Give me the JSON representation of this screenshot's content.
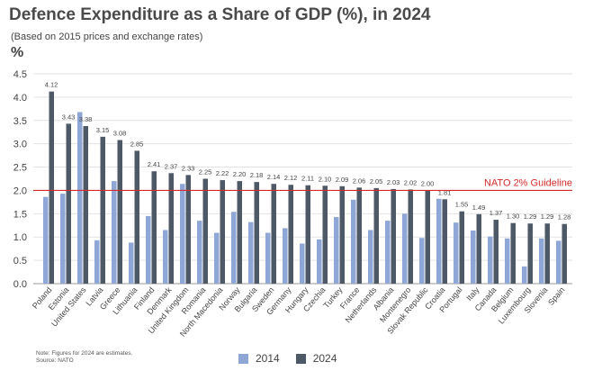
{
  "chart_data": {
    "type": "bar",
    "title": "Defence Expenditure as a Share of GDP (%), in 2024",
    "subtitle": "(Based on 2015 prices and exchange rates)",
    "ylabel": "%",
    "xlabel": "",
    "ylim": [
      0,
      4.5
    ],
    "yticks": [
      "0.0",
      "0.5",
      "1.0",
      "1.5",
      "2.0",
      "2.5",
      "3.0",
      "3.5",
      "4.0",
      "4.5"
    ],
    "categories": [
      "Poland",
      "Estonia",
      "United States",
      "Latvia",
      "Greece",
      "Lithuania",
      "Finland",
      "Denmark",
      "United Kingdom",
      "Romania",
      "North Macedonia",
      "Norway",
      "Bulgaria",
      "Sweden",
      "Germany",
      "Hungary",
      "Czechia",
      "Turkey",
      "France",
      "Netherlands",
      "Albania",
      "Montenegro",
      "Slovak Republic",
      "Croatia",
      "Portugal",
      "Italy",
      "Canada",
      "Belgium",
      "Luxembourg",
      "Slovenia",
      "Spain"
    ],
    "series": [
      {
        "name": "2014",
        "color": "#8fa7d6",
        "values": [
          1.86,
          1.93,
          3.68,
          0.93,
          2.2,
          0.88,
          1.45,
          1.15,
          2.14,
          1.35,
          1.09,
          1.54,
          1.32,
          1.09,
          1.19,
          0.86,
          0.95,
          1.43,
          1.8,
          1.15,
          1.35,
          1.5,
          0.98,
          1.82,
          1.31,
          1.14,
          1.01,
          0.97,
          0.37,
          0.97,
          0.92
        ],
        "labels": []
      },
      {
        "name": "2024",
        "color": "#4d5966",
        "values": [
          4.12,
          3.43,
          3.38,
          3.15,
          3.08,
          2.85,
          2.41,
          2.37,
          2.33,
          2.25,
          2.22,
          2.2,
          2.18,
          2.14,
          2.12,
          2.11,
          2.1,
          2.09,
          2.06,
          2.05,
          2.03,
          2.02,
          2.0,
          1.81,
          1.55,
          1.49,
          1.37,
          1.3,
          1.29,
          1.29,
          1.28
        ],
        "labels": [
          "4.12",
          "3.43",
          "3.38",
          "3.15",
          "3.08",
          "2.85",
          "2.41",
          "2.37",
          "2.33",
          "2.25",
          "2.22",
          "2.20",
          "2.18",
          "2.14",
          "2.12",
          "2.11",
          "2.10",
          "2.09",
          "2.06",
          "2.05",
          "2.03",
          "2.02",
          "2.00",
          "1.81",
          "1.55",
          "1.49",
          "1.37",
          "1.30",
          "1.29",
          "1.29",
          "1.28"
        ]
      }
    ],
    "reference_line": {
      "value": 2.0,
      "label": "NATO 2% Guideline",
      "color": "#d42a2a"
    },
    "legend": "bottom-center",
    "grid": "horizontal"
  },
  "note": {
    "line1": "Note: Figures for 2024 are estimates.",
    "line2": "Source: NATO"
  }
}
